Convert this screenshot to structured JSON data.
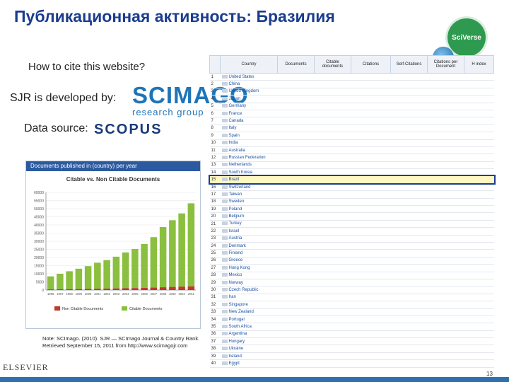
{
  "slide": {
    "title": "Публикационная активность: Бразилия",
    "cite_question": "How to cite this website?",
    "sjr_label": "SJR is developed by:",
    "data_source_label": "Data source:",
    "scimago_big": "SCIMAGO",
    "scimago_small": "research group",
    "scopus_logo": "SCOPUS",
    "sciverse_logo": "SciVerse",
    "elsevier_logo": "ELSEVIER",
    "page_number": "13",
    "note": "Note: SCImago. (2010). SJR — SCImago Journal & Country Rank. Retrieved September 15, 2011 from http://www.scimagojr.com"
  },
  "chart_panel": {
    "header": "Documents published in (country) per year",
    "chart_title": "Citable vs. Non Citable Documents"
  },
  "chart_data": {
    "type": "bar",
    "title": "Citable vs. Non Citable Documents",
    "categories": [
      "1996",
      "1997",
      "1998",
      "1999",
      "2000",
      "2001",
      "2002",
      "2003",
      "2004",
      "2005",
      "2006",
      "2007",
      "2008",
      "2009",
      "2010",
      "2011"
    ],
    "series": [
      {
        "name": "Citable Documents",
        "values": [
          8000,
          9500,
          11000,
          12500,
          14000,
          16000,
          17500,
          19500,
          22000,
          24000,
          27000,
          31000,
          37000,
          41000,
          45000,
          51000
        ]
      },
      {
        "name": "Non Citable Documents",
        "values": [
          400,
          500,
          550,
          600,
          700,
          800,
          900,
          1000,
          1100,
          1200,
          1300,
          1500,
          1700,
          1900,
          2100,
          2300
        ]
      }
    ],
    "y_ticks": [
      "0",
      "5000",
      "10000",
      "15000",
      "20000",
      "25000",
      "30000",
      "35000",
      "40000",
      "45000",
      "50000",
      "55000",
      "60000"
    ],
    "ylim": [
      0,
      60000
    ],
    "legend": "bottom",
    "colors": {
      "citable": "#8bbf3f",
      "non_citable": "#c0392b"
    }
  },
  "table": {
    "headers": [
      "Country",
      "Documents",
      "Citable documents",
      "Citations",
      "Self-Citations",
      "Citations per Document",
      "H index"
    ],
    "highlight_rank": 15,
    "rows": [
      {
        "rank": "1",
        "country": "United States",
        "docs": "",
        "cdocs": "",
        "cit": "",
        "self": "",
        "cpd": "",
        "h": ""
      },
      {
        "rank": "2",
        "country": "China",
        "docs": "",
        "cdocs": "",
        "cit": "",
        "self": "",
        "cpd": "",
        "h": ""
      },
      {
        "rank": "3",
        "country": "United Kingdom",
        "docs": "",
        "cdocs": "",
        "cit": "",
        "self": "",
        "cpd": "",
        "h": ""
      },
      {
        "rank": "4",
        "country": "Japan",
        "docs": "",
        "cdocs": "",
        "cit": "",
        "self": "",
        "cpd": "",
        "h": ""
      },
      {
        "rank": "5",
        "country": "Germany",
        "docs": "",
        "cdocs": "",
        "cit": "",
        "self": "",
        "cpd": "",
        "h": ""
      },
      {
        "rank": "6",
        "country": "France",
        "docs": "",
        "cdocs": "",
        "cit": "",
        "self": "",
        "cpd": "",
        "h": ""
      },
      {
        "rank": "7",
        "country": "Canada",
        "docs": "",
        "cdocs": "",
        "cit": "",
        "self": "",
        "cpd": "",
        "h": ""
      },
      {
        "rank": "8",
        "country": "Italy",
        "docs": "",
        "cdocs": "",
        "cit": "",
        "self": "",
        "cpd": "",
        "h": ""
      },
      {
        "rank": "9",
        "country": "Spain",
        "docs": "",
        "cdocs": "",
        "cit": "",
        "self": "",
        "cpd": "",
        "h": ""
      },
      {
        "rank": "10",
        "country": "India",
        "docs": "",
        "cdocs": "",
        "cit": "",
        "self": "",
        "cpd": "",
        "h": ""
      },
      {
        "rank": "11",
        "country": "Australia",
        "docs": "",
        "cdocs": "",
        "cit": "",
        "self": "",
        "cpd": "",
        "h": ""
      },
      {
        "rank": "12",
        "country": "Russian Federation",
        "docs": "",
        "cdocs": "",
        "cit": "",
        "self": "",
        "cpd": "",
        "h": ""
      },
      {
        "rank": "13",
        "country": "Netherlands",
        "docs": "",
        "cdocs": "",
        "cit": "",
        "self": "",
        "cpd": "",
        "h": ""
      },
      {
        "rank": "14",
        "country": "South Korea",
        "docs": "",
        "cdocs": "",
        "cit": "",
        "self": "",
        "cpd": "",
        "h": ""
      },
      {
        "rank": "15",
        "country": "Brazil",
        "docs": "",
        "cdocs": "",
        "cit": "",
        "self": "",
        "cpd": "",
        "h": ""
      },
      {
        "rank": "16",
        "country": "Switzerland",
        "docs": "",
        "cdocs": "",
        "cit": "",
        "self": "",
        "cpd": "",
        "h": ""
      },
      {
        "rank": "17",
        "country": "Taiwan",
        "docs": "",
        "cdocs": "",
        "cit": "",
        "self": "",
        "cpd": "",
        "h": ""
      },
      {
        "rank": "18",
        "country": "Sweden",
        "docs": "",
        "cdocs": "",
        "cit": "",
        "self": "",
        "cpd": "",
        "h": ""
      },
      {
        "rank": "19",
        "country": "Poland",
        "docs": "",
        "cdocs": "",
        "cit": "",
        "self": "",
        "cpd": "",
        "h": ""
      },
      {
        "rank": "20",
        "country": "Belgium",
        "docs": "",
        "cdocs": "",
        "cit": "",
        "self": "",
        "cpd": "",
        "h": ""
      },
      {
        "rank": "21",
        "country": "Turkey",
        "docs": "",
        "cdocs": "",
        "cit": "",
        "self": "",
        "cpd": "",
        "h": ""
      },
      {
        "rank": "22",
        "country": "Israel",
        "docs": "",
        "cdocs": "",
        "cit": "",
        "self": "",
        "cpd": "",
        "h": ""
      },
      {
        "rank": "23",
        "country": "Austria",
        "docs": "",
        "cdocs": "",
        "cit": "",
        "self": "",
        "cpd": "",
        "h": ""
      },
      {
        "rank": "24",
        "country": "Denmark",
        "docs": "",
        "cdocs": "",
        "cit": "",
        "self": "",
        "cpd": "",
        "h": ""
      },
      {
        "rank": "25",
        "country": "Finland",
        "docs": "",
        "cdocs": "",
        "cit": "",
        "self": "",
        "cpd": "",
        "h": ""
      },
      {
        "rank": "26",
        "country": "Greece",
        "docs": "",
        "cdocs": "",
        "cit": "",
        "self": "",
        "cpd": "",
        "h": ""
      },
      {
        "rank": "27",
        "country": "Hong Kong",
        "docs": "",
        "cdocs": "",
        "cit": "",
        "self": "",
        "cpd": "",
        "h": ""
      },
      {
        "rank": "28",
        "country": "Mexico",
        "docs": "",
        "cdocs": "",
        "cit": "",
        "self": "",
        "cpd": "",
        "h": ""
      },
      {
        "rank": "29",
        "country": "Norway",
        "docs": "",
        "cdocs": "",
        "cit": "",
        "self": "",
        "cpd": "",
        "h": ""
      },
      {
        "rank": "30",
        "country": "Czech Republic",
        "docs": "",
        "cdocs": "",
        "cit": "",
        "self": "",
        "cpd": "",
        "h": ""
      },
      {
        "rank": "31",
        "country": "Iran",
        "docs": "",
        "cdocs": "",
        "cit": "",
        "self": "",
        "cpd": "",
        "h": ""
      },
      {
        "rank": "32",
        "country": "Singapore",
        "docs": "",
        "cdocs": "",
        "cit": "",
        "self": "",
        "cpd": "",
        "h": ""
      },
      {
        "rank": "33",
        "country": "New Zealand",
        "docs": "",
        "cdocs": "",
        "cit": "",
        "self": "",
        "cpd": "",
        "h": ""
      },
      {
        "rank": "34",
        "country": "Portugal",
        "docs": "",
        "cdocs": "",
        "cit": "",
        "self": "",
        "cpd": "",
        "h": ""
      },
      {
        "rank": "35",
        "country": "South Africa",
        "docs": "",
        "cdocs": "",
        "cit": "",
        "self": "",
        "cpd": "",
        "h": ""
      },
      {
        "rank": "36",
        "country": "Argentina",
        "docs": "",
        "cdocs": "",
        "cit": "",
        "self": "",
        "cpd": "",
        "h": ""
      },
      {
        "rank": "37",
        "country": "Hungary",
        "docs": "",
        "cdocs": "",
        "cit": "",
        "self": "",
        "cpd": "",
        "h": ""
      },
      {
        "rank": "38",
        "country": "Ukraine",
        "docs": "",
        "cdocs": "",
        "cit": "",
        "self": "",
        "cpd": "",
        "h": ""
      },
      {
        "rank": "39",
        "country": "Ireland",
        "docs": "",
        "cdocs": "",
        "cit": "",
        "self": "",
        "cpd": "",
        "h": ""
      },
      {
        "rank": "40",
        "country": "Egypt",
        "docs": "",
        "cdocs": "",
        "cit": "",
        "self": "",
        "cpd": "",
        "h": ""
      }
    ]
  }
}
